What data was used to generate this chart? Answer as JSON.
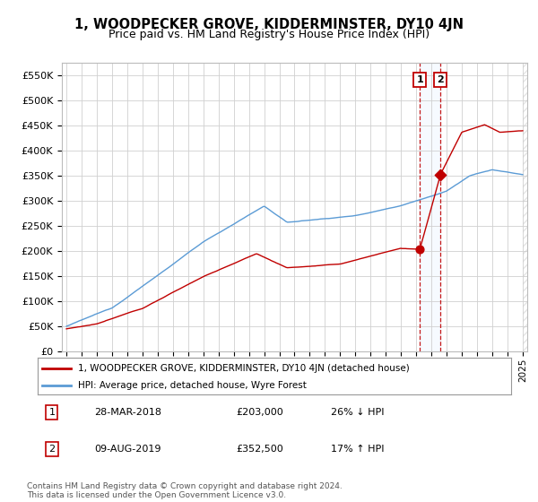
{
  "title": "1, WOODPECKER GROVE, KIDDERMINSTER, DY10 4JN",
  "subtitle": "Price paid vs. HM Land Registry's House Price Index (HPI)",
  "ylim": [
    0,
    575000
  ],
  "yticks": [
    0,
    50000,
    100000,
    150000,
    200000,
    250000,
    300000,
    350000,
    400000,
    450000,
    500000,
    550000
  ],
  "ytick_labels": [
    "£0",
    "£50K",
    "£100K",
    "£150K",
    "£200K",
    "£250K",
    "£300K",
    "£350K",
    "£400K",
    "£450K",
    "£500K",
    "£550K"
  ],
  "hpi_color": "#5b9bd5",
  "price_color": "#c00000",
  "vline_color": "#c00000",
  "shade_color": "#ddeeff",
  "annotation_box_color": "#c00000",
  "background_color": "#ffffff",
  "grid_color": "#d0d0d0",
  "legend_label_price": "1, WOODPECKER GROVE, KIDDERMINSTER, DY10 4JN (detached house)",
  "legend_label_hpi": "HPI: Average price, detached house, Wyre Forest",
  "annotation1_label": "1",
  "annotation1_date": "28-MAR-2018",
  "annotation1_price": "£203,000",
  "annotation1_pct": "26% ↓ HPI",
  "annotation2_label": "2",
  "annotation2_date": "09-AUG-2019",
  "annotation2_price": "£352,500",
  "annotation2_pct": "17% ↑ HPI",
  "footnote": "Contains HM Land Registry data © Crown copyright and database right 2024.\nThis data is licensed under the Open Government Licence v3.0.",
  "purchase1_x": 2018.24,
  "purchase1_y": 203000,
  "purchase2_x": 2019.6,
  "purchase2_y": 352500,
  "xlim_left": 1994.7,
  "xlim_right": 2025.3
}
